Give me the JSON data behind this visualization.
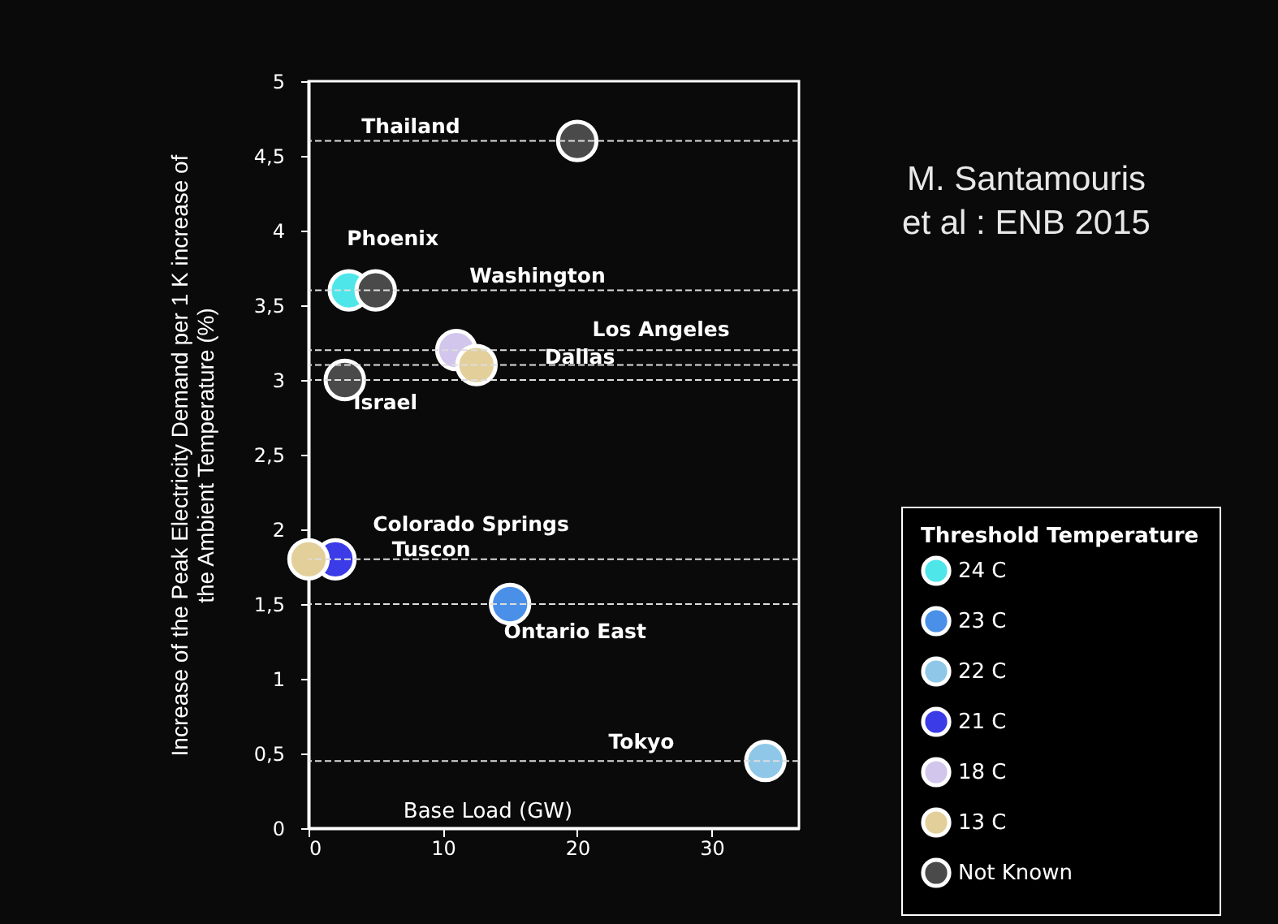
{
  "chart_data": {
    "type": "scatter",
    "xlabel": "Base Load (GW)",
    "ylabel": "Increase of the Peak Electricity Demand per 1 K increase of the Ambient Temperature (%)",
    "legend_title": "Threshold Temperature",
    "legend": "right",
    "marker": "circle",
    "xlim": [
      0,
      36.5
    ],
    "xticks": [
      0,
      10,
      20,
      30
    ],
    "ylim": [
      0,
      5
    ],
    "yticks": [
      0,
      {
        "value": 0.5,
        "label": "0,5"
      },
      1,
      {
        "value": 1.5,
        "label": "1,5"
      },
      2,
      {
        "value": 2.5,
        "label": "2,5"
      },
      3,
      {
        "value": 3.5,
        "label": "3,5"
      },
      4,
      {
        "value": 4.5,
        "label": "4,5"
      },
      5
    ],
    "series": [
      {
        "name": "24 C",
        "color": "#4fe6ea",
        "x": [
          3
        ],
        "values": [
          3.6
        ]
      },
      {
        "name": "23 C",
        "color": "#4a90e8",
        "x": [
          15
        ],
        "values": [
          1.5
        ]
      },
      {
        "name": "22 C",
        "color": "#8ec7e8",
        "x": [
          34
        ],
        "values": [
          0.45
        ]
      },
      {
        "name": "21 C",
        "color": "#3b3be8",
        "x": [
          2
        ],
        "values": [
          1.8
        ]
      },
      {
        "name": "18 C",
        "color": "#d3c6ec",
        "x": [
          11
        ],
        "values": [
          3.2
        ]
      },
      {
        "name": "13 C",
        "color": "#e3cf9a",
        "x": [
          0,
          12.5
        ],
        "values": [
          1.8,
          3.1
        ]
      },
      {
        "name": "Not Known",
        "color": "#4a4a4a",
        "x": [
          20,
          5,
          2.7
        ],
        "values": [
          4.6,
          3.6,
          3.0
        ]
      }
    ],
    "ref_lines": [
      {
        "axis": "y",
        "value": 4.6,
        "line_style": "dashed"
      },
      {
        "axis": "y",
        "value": 3.6,
        "line_style": "dashed"
      },
      {
        "axis": "y",
        "value": 3.2,
        "line_style": "dashed"
      },
      {
        "axis": "y",
        "value": 3.1,
        "line_style": "dashed"
      },
      {
        "axis": "y",
        "value": 3.0,
        "line_style": "dashed"
      },
      {
        "axis": "y",
        "value": 1.8,
        "line_style": "dashed"
      },
      {
        "axis": "y",
        "value": 1.5,
        "line_style": "dashed"
      },
      {
        "axis": "y",
        "value": 0.45,
        "line_style": "dashed"
      }
    ],
    "annotations": [
      "Thailand",
      {
        "text": "Phoenix",
        "x": 3,
        "y": 3.6
      },
      "Washington",
      "Los Angeles",
      "Dallas",
      {
        "text": "Israel",
        "x": 2.7,
        "y": 3.0
      },
      "Colorado Springs",
      {
        "text": "Tuscon",
        "x": 2,
        "y": 1.8
      },
      {
        "text": "Ontario East",
        "x": 15,
        "y": 1.5
      },
      "Tokyo",
      "M. Santamouris et al : ENB 2015"
    ]
  }
}
